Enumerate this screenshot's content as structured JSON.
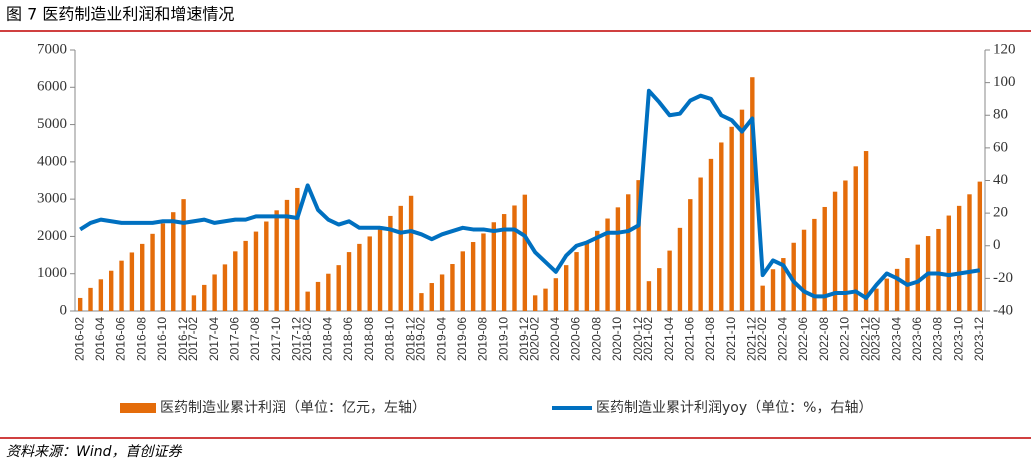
{
  "chart_data": {
    "type": "bar_line",
    "title": "图 7 医药制造业利润和增速情况",
    "source": "资料来源：Wind，首创证券",
    "categories": [
      "2016-02",
      null,
      "2016-04",
      null,
      "2016-06",
      null,
      "2016-08",
      null,
      "2016-10",
      null,
      "2016-12",
      "2017-02",
      null,
      "2017-04",
      null,
      "2017-06",
      null,
      "2017-08",
      null,
      "2017-10",
      null,
      "2017-12",
      "2018-02",
      null,
      "2018-04",
      null,
      "2018-06",
      null,
      "2018-08",
      null,
      "2018-10",
      null,
      "2018-12",
      "2019-02",
      null,
      "2019-04",
      null,
      "2019-06",
      null,
      "2019-08",
      null,
      "2019-10",
      null,
      "2019-12",
      "2020-02",
      null,
      "2020-04",
      null,
      "2020-06",
      null,
      "2020-08",
      null,
      "2020-10",
      null,
      "2020-12",
      "2021-02",
      null,
      "2021-04",
      null,
      "2021-06",
      null,
      "2021-08",
      null,
      "2021-10",
      null,
      "2021-12",
      "2022-02",
      null,
      "2022-04",
      null,
      "2022-06",
      null,
      "2022-08",
      null,
      "2022-10",
      null,
      "2022-12",
      "2023-02",
      null,
      "2023-04",
      null,
      "2023-06",
      null,
      "2023-08",
      null,
      "2023-10",
      null,
      "2023-12"
    ],
    "series": [
      {
        "name": "医药制造业累计利润（单位：亿元，左轴）",
        "color": "#e46c0a",
        "type": "bar",
        "values": [
          350,
          620,
          850,
          1080,
          1350,
          1570,
          1800,
          2070,
          2350,
          2650,
          3000,
          420,
          700,
          980,
          1250,
          1600,
          1880,
          2130,
          2400,
          2700,
          2980,
          3300,
          520,
          780,
          1000,
          1230,
          1580,
          1800,
          2000,
          2230,
          2550,
          2820,
          3090,
          480,
          750,
          980,
          1260,
          1600,
          1850,
          2080,
          2380,
          2600,
          2830,
          3120,
          420,
          600,
          880,
          1230,
          1580,
          1870,
          2150,
          2480,
          2780,
          3130,
          3510,
          800,
          1150,
          1620,
          2230,
          3000,
          3580,
          4080,
          4520,
          4940,
          5400,
          6270,
          680,
          1120,
          1420,
          1830,
          2180,
          2470,
          2790,
          3200,
          3500,
          3880,
          4290,
          600,
          870,
          1130,
          1420,
          1780,
          2010,
          2200,
          2560,
          2820,
          3130,
          3470
        ]
      },
      {
        "name": "医药制造业累计利润yoy（单位：%，右轴）",
        "color": "#0070c0",
        "type": "line",
        "axis": "y2",
        "values": [
          10,
          14,
          16,
          15,
          14,
          14,
          14,
          14,
          15,
          15,
          14,
          15,
          16,
          14,
          15,
          16,
          16,
          18,
          18,
          18,
          18,
          17,
          37,
          22,
          16,
          13,
          15,
          11,
          11,
          11,
          10,
          8,
          9,
          7,
          4,
          7,
          9,
          11,
          10,
          10,
          9,
          10,
          10,
          6,
          -4,
          -10,
          -16,
          -6,
          0,
          2,
          5,
          8,
          8,
          9,
          12.5,
          95,
          88,
          80,
          81,
          89,
          92,
          90,
          80,
          77,
          70,
          78,
          -18,
          -9,
          -12,
          -22,
          -28,
          -31,
          -31,
          -29,
          -29,
          -28,
          -32,
          -24,
          -17,
          -20,
          -24,
          -22,
          -17,
          -17,
          -18,
          -17,
          -16,
          -15
        ]
      }
    ],
    "ylim": [
      0,
      7000
    ],
    "yticks": [
      0,
      1000,
      2000,
      3000,
      4000,
      5000,
      6000,
      7000
    ],
    "y2lim": [
      -40,
      120
    ],
    "y2ticks": [
      -40,
      -20,
      0,
      20,
      40,
      60,
      80,
      100,
      120
    ]
  }
}
